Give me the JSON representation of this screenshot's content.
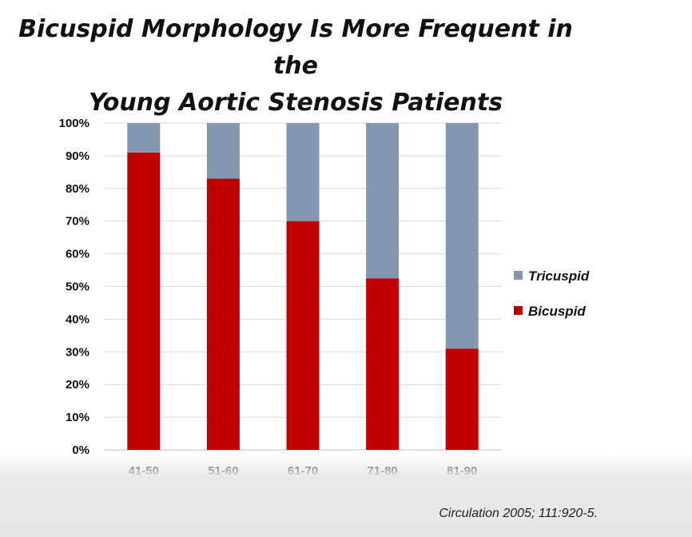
{
  "slide": {
    "title_line1": "Bicuspid Morphology Is More Frequent in the",
    "title_line2": "Young Aortic Stenosis Patients",
    "citation": "Circulation 2005; 111:920-5."
  },
  "chart_data": {
    "type": "bar",
    "stacked": true,
    "title": "Bicuspid Morphology Is More Frequent in the Young Aortic Stenosis Patients",
    "xlabel": "",
    "ylabel": "",
    "categories": [
      "41-50",
      "51-60",
      "61-70",
      "71-80",
      "81-90"
    ],
    "y_ticks": [
      "0%",
      "10%",
      "20%",
      "30%",
      "40%",
      "50%",
      "60%",
      "70%",
      "80%",
      "90%",
      "100%"
    ],
    "ylim": [
      0,
      100
    ],
    "grid": true,
    "legend_position": "right",
    "series": [
      {
        "name": "Bicuspid",
        "color": "#c00000",
        "values": [
          91,
          83,
          70,
          52.5,
          31
        ]
      },
      {
        "name": "Tricuspid",
        "color": "#8496b0",
        "values": [
          9,
          17,
          30,
          47.5,
          69
        ]
      }
    ],
    "legend_order": [
      "Tricuspid",
      "Bicuspid"
    ]
  }
}
